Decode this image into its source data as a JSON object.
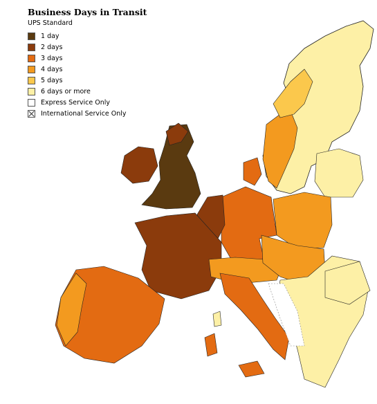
{
  "title": "Business Days in Transit",
  "subtitle": "UPS Standard",
  "legend": [
    {
      "label": "1 day",
      "color": "#5a3a10",
      "pattern": "solid"
    },
    {
      "label": "2 days",
      "color": "#8b3b0c",
      "pattern": "solid"
    },
    {
      "label": "3 days",
      "color": "#e36b12",
      "pattern": "solid"
    },
    {
      "label": "4 days",
      "color": "#f39a1f",
      "pattern": "solid"
    },
    {
      "label": "5 days",
      "color": "#fbc84c",
      "pattern": "solid"
    },
    {
      "label": "6 days or more",
      "color": "#fdf0a6",
      "pattern": "solid"
    },
    {
      "label": "Express Service Only",
      "color": "#ffffff",
      "pattern": "solid"
    },
    {
      "label": "International Service Only",
      "color": "#ffffff",
      "pattern": "cross"
    }
  ]
}
